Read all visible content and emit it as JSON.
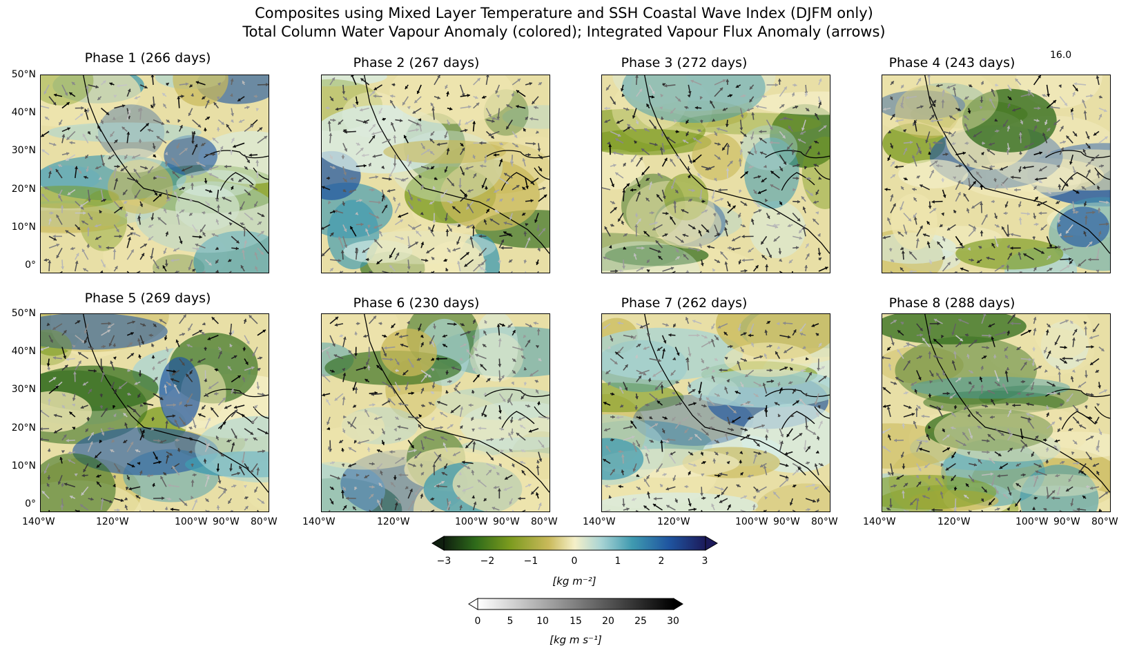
{
  "title_line1": "Composites using Mixed Layer Temperature and SSH Coastal Wave Index (DJFM only)",
  "title_line2": "Total Column Water Vapour Anomaly (colored); Integrated Vapour Flux Anomaly (arrows)",
  "panels": [
    {
      "title": "Phase 1 (266 days)"
    },
    {
      "title": "Phase 2 (267 days)"
    },
    {
      "title": "Phase 3 (272 days)"
    },
    {
      "title": "Phase 4 (243 days)"
    },
    {
      "title": "Phase 5 (269 days)"
    },
    {
      "title": "Phase 6 (230 days)"
    },
    {
      "title": "Phase 7 (262 days)"
    },
    {
      "title": "Phase 8 (288 days)"
    }
  ],
  "quiver_reference_label": "16.0",
  "lat_ticks": [
    "50°N",
    "40°N",
    "30°N",
    "20°N",
    "10°N",
    "0°"
  ],
  "lon_ticks": [
    "140°W",
    "120°W",
    "100°W",
    "90°W",
    "80°W"
  ],
  "colorbar_tcwv": {
    "ticks": [
      "−3",
      "−2",
      "−1",
      "0",
      "1",
      "2",
      "3"
    ],
    "label": "[kg m⁻²]",
    "colors": [
      "#0f1f0f",
      "#2e6a1a",
      "#7a9a1e",
      "#c9b95a",
      "#f5f0c9",
      "#a9d4d4",
      "#3f9ab0",
      "#1f55a0",
      "#1c1a5a"
    ]
  },
  "colorbar_flux": {
    "ticks": [
      "0",
      "5",
      "10",
      "15",
      "20",
      "25",
      "30"
    ],
    "label": "[kg m s⁻¹]",
    "colors": [
      "#ffffff",
      "#000000"
    ]
  }
}
